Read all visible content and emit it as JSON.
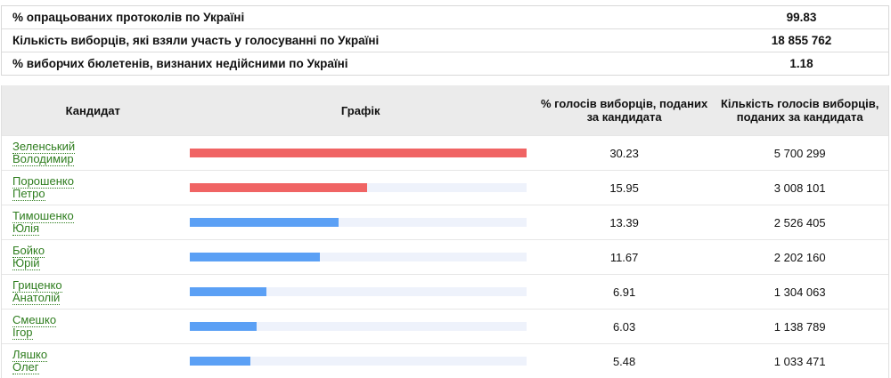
{
  "summary": [
    {
      "label": "% опрацьованих протоколів по Україні",
      "value": "99.83"
    },
    {
      "label": "Кількість виборців, які взяли участь у голосуванні по Україні",
      "value": "18 855 762"
    },
    {
      "label": "% виборчих бюлетенів, визнаних недійсними по Україні",
      "value": "1.18"
    }
  ],
  "headers": {
    "candidate": "Кандидат",
    "graph": "Графік",
    "pct": "% голосів виборців, поданих за кандидата",
    "count": "Кількість голосів виборців, поданих за кандидата"
  },
  "colors": {
    "top": "#f06464",
    "other": "#5ba0f5",
    "track": "#eef2fb",
    "link": "#2e7d1e"
  },
  "candidates": [
    {
      "surname": "Зеленський",
      "given": "Володимир",
      "pct": "30.23",
      "count": "5 700 299",
      "share": 1.0,
      "color": "#f06464"
    },
    {
      "surname": "Порошенко",
      "given": "Петро",
      "pct": "15.95",
      "count": "3 008 101",
      "share": 0.5276,
      "color": "#f06464"
    },
    {
      "surname": "Тимошенко",
      "given": "Юлія",
      "pct": "13.39",
      "count": "2 526 405",
      "share": 0.4429,
      "color": "#5ba0f5"
    },
    {
      "surname": "Бойко",
      "given": "Юрій",
      "pct": "11.67",
      "count": "2 202 160",
      "share": 0.3861,
      "color": "#5ba0f5"
    },
    {
      "surname": "Гриценко",
      "given": "Анатолій",
      "pct": "6.91",
      "count": "1 304 063",
      "share": 0.2286,
      "color": "#5ba0f5"
    },
    {
      "surname": "Смешко",
      "given": "Ігор",
      "pct": "6.03",
      "count": "1 138 789",
      "share": 0.1995,
      "color": "#5ba0f5"
    },
    {
      "surname": "Ляшко",
      "given": "Олег",
      "pct": "5.48",
      "count": "1 033 471",
      "share": 0.1813,
      "color": "#5ba0f5"
    }
  ]
}
